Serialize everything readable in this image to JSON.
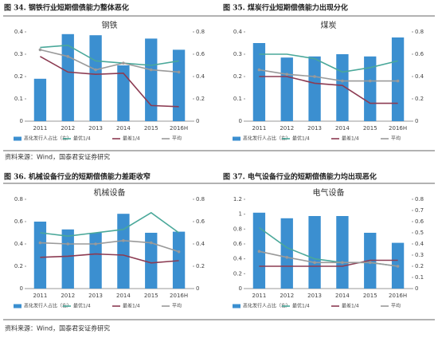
{
  "chart_data": [
    {
      "type": "combo",
      "caption": "图 34. 钢铁行业短期偿债能力整体恶化",
      "title": "钢铁",
      "categories": [
        "2011",
        "2012",
        "2013",
        "2014",
        "2015",
        "2016H"
      ],
      "ylim": [
        0,
        0.4
      ],
      "yticks": [
        0,
        0.1,
        0.2,
        0.3,
        0.4
      ],
      "y2lim": [
        0,
        0.8
      ],
      "y2ticks": [
        0,
        0.2,
        0.4,
        0.6,
        0.8
      ],
      "series": [
        {
          "name": "恶化发行人占比（右）",
          "type": "bar",
          "axis": "y2",
          "color": "#3b8fd0",
          "values": [
            0.38,
            0.78,
            0.77,
            0.5,
            0.74,
            0.64
          ]
        },
        {
          "name": "最优1/4",
          "type": "line",
          "color": "#4aa89a",
          "values": [
            0.33,
            0.34,
            0.27,
            0.26,
            0.25,
            0.27
          ]
        },
        {
          "name": "最差1/4",
          "type": "line",
          "color": "#8c3b52",
          "values": [
            0.29,
            0.22,
            0.21,
            0.215,
            0.07,
            0.065
          ]
        },
        {
          "name": "平均",
          "type": "line",
          "color": "#9a9a9a",
          "values": [
            0.32,
            0.29,
            0.23,
            0.26,
            0.23,
            0.22
          ]
        }
      ]
    },
    {
      "type": "combo",
      "caption": "图 35. 煤炭行业短期偿债能力出现分化",
      "title": "煤炭",
      "categories": [
        "2011",
        "2012",
        "2013",
        "2014",
        "2015",
        "2016H"
      ],
      "ylim": [
        0,
        0.4
      ],
      "yticks": [
        0,
        0.1,
        0.2,
        0.3,
        0.4
      ],
      "y2lim": [
        0,
        0.8
      ],
      "y2ticks": [
        0,
        0.2,
        0.4,
        0.6,
        0.8
      ],
      "series": [
        {
          "name": "恶化发行人占比（右）",
          "type": "bar",
          "axis": "y2",
          "color": "#3b8fd0",
          "values": [
            0.7,
            0.57,
            0.58,
            0.6,
            0.58,
            0.75
          ]
        },
        {
          "name": "最优1/4",
          "type": "line",
          "color": "#4aa89a",
          "values": [
            0.3,
            0.3,
            0.28,
            0.22,
            0.24,
            0.27
          ]
        },
        {
          "name": "最差1/4",
          "type": "line",
          "color": "#8c3b52",
          "values": [
            0.2,
            0.2,
            0.17,
            0.16,
            0.08,
            0.08
          ]
        },
        {
          "name": "平均",
          "type": "line",
          "color": "#9a9a9a",
          "values": [
            0.23,
            0.21,
            0.2,
            0.18,
            0.18,
            0.18
          ]
        }
      ]
    },
    {
      "type": "combo",
      "caption": "图 36. 机械设备行业的短期偿债能力差距收窄",
      "title": "机械设备",
      "categories": [
        "2011",
        "2012",
        "2013",
        "2014",
        "2015",
        "2016H"
      ],
      "ylim": [
        0,
        0.8
      ],
      "yticks": [
        0,
        0.2,
        0.4,
        0.6,
        0.8
      ],
      "y2lim": [
        0,
        0.8
      ],
      "y2ticks": [
        0,
        0.2,
        0.4,
        0.6,
        0.8
      ],
      "series": [
        {
          "name": "恶化发行人占比（右）",
          "type": "bar",
          "axis": "y2",
          "color": "#3b8fd0",
          "values": [
            0.6,
            0.53,
            0.5,
            0.67,
            0.5,
            0.51
          ]
        },
        {
          "name": "最优1/4",
          "type": "line",
          "color": "#4aa89a",
          "values": [
            0.5,
            0.47,
            0.5,
            0.53,
            0.68,
            0.5
          ]
        },
        {
          "name": "最差1/4",
          "type": "line",
          "color": "#8c3b52",
          "values": [
            0.28,
            0.29,
            0.31,
            0.3,
            0.23,
            0.25
          ]
        },
        {
          "name": "平均",
          "type": "line",
          "color": "#9a9a9a",
          "values": [
            0.41,
            0.4,
            0.4,
            0.43,
            0.41,
            0.33
          ]
        }
      ]
    },
    {
      "type": "combo",
      "caption": "图 37. 电气设备行业的短期偿债能力均出现恶化",
      "title": "电气设备",
      "categories": [
        "2011",
        "2012",
        "2013",
        "2014",
        "2015",
        "2016H"
      ],
      "ylim": [
        0,
        1.2
      ],
      "yticks": [
        0,
        0.2,
        0.4,
        0.6,
        0.8,
        1,
        1.2
      ],
      "y2lim": [
        0,
        0.8
      ],
      "y2ticks": [
        0,
        0.1,
        0.2,
        0.3,
        0.4,
        0.5,
        0.6,
        0.7,
        0.8
      ],
      "series": [
        {
          "name": "恶化发行人占比（右）",
          "type": "bar",
          "axis": "y2",
          "color": "#3b8fd0",
          "values": [
            0.68,
            0.63,
            0.65,
            0.65,
            0.5,
            0.41
          ]
        },
        {
          "name": "最优1/4",
          "type": "line",
          "color": "#4aa89a",
          "values": [
            0.82,
            0.55,
            0.4,
            0.35,
            0.35,
            0.3
          ]
        },
        {
          "name": "最差1/4",
          "type": "line",
          "color": "#8c3b52",
          "values": [
            0.3,
            0.3,
            0.3,
            0.3,
            0.38,
            0.38
          ]
        },
        {
          "name": "平均",
          "type": "line",
          "color": "#9a9a9a",
          "values": [
            0.5,
            0.42,
            0.35,
            0.35,
            0.35,
            0.3
          ]
        }
      ]
    }
  ],
  "sources": [
    "资料来源：Wind，国泰君安证券研究",
    "资料来源：Wind，国泰君安证券研究"
  ]
}
